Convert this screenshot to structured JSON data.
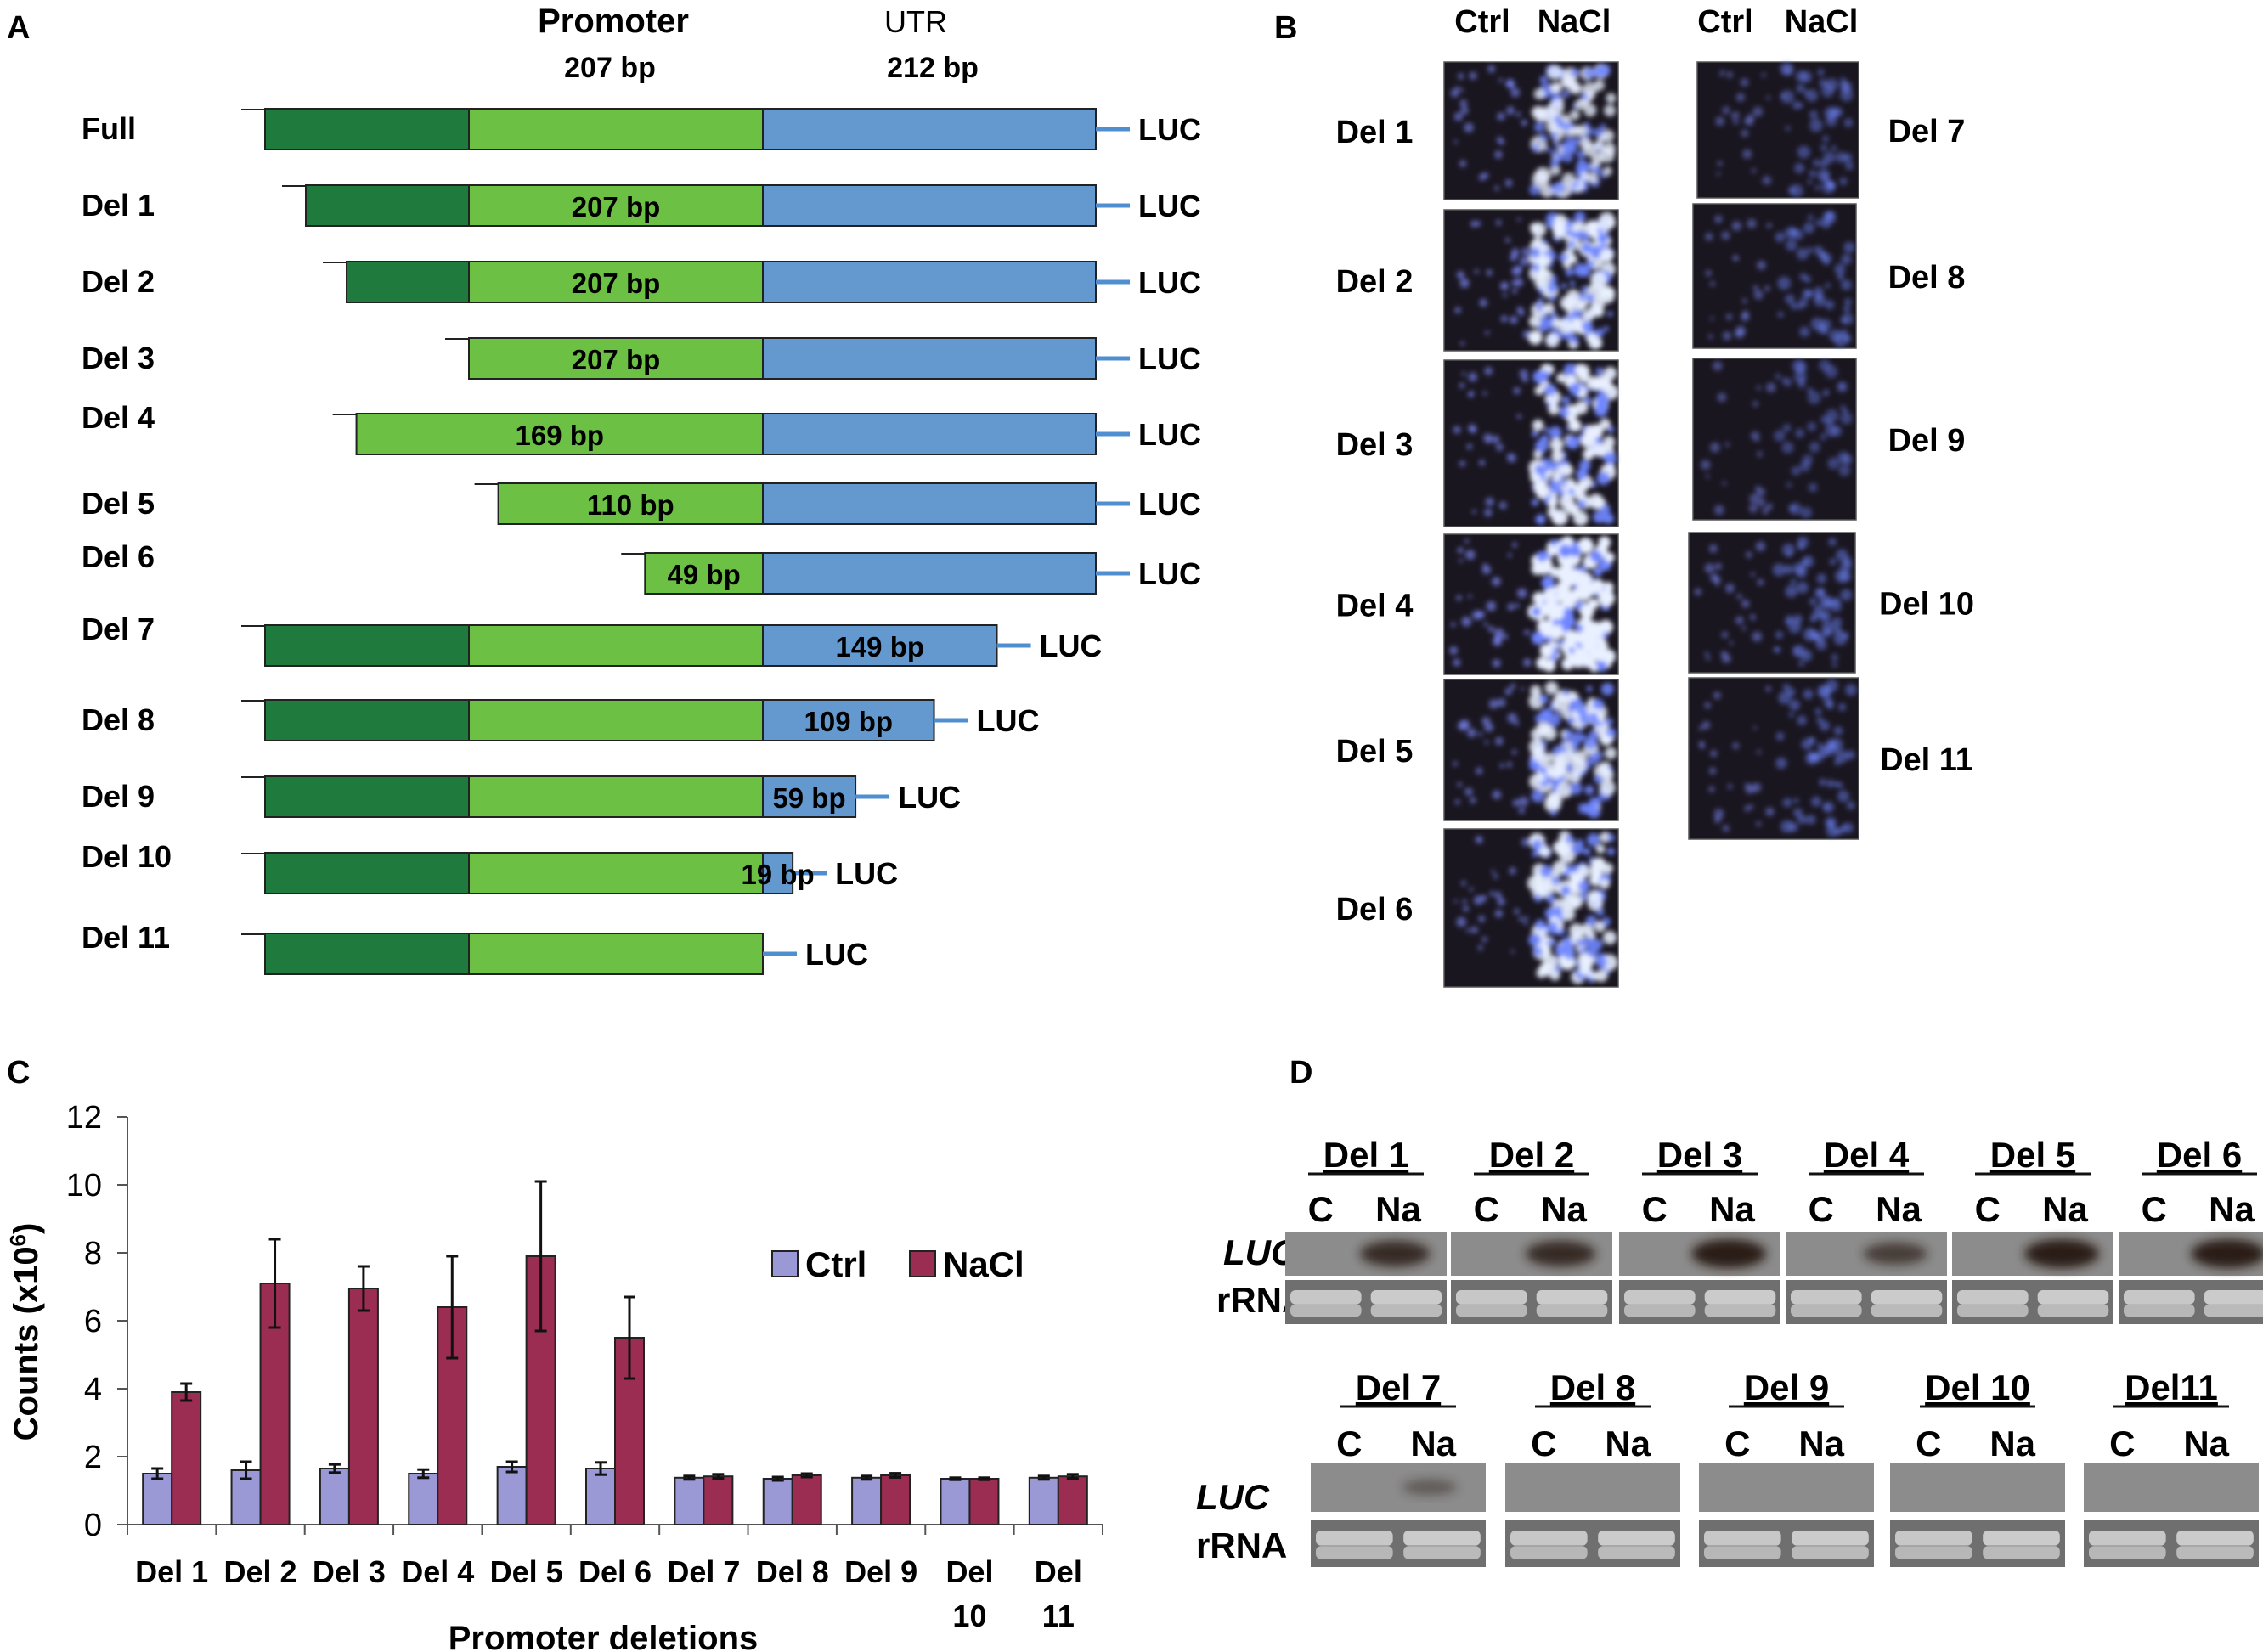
{
  "panel_labels": {
    "a": "A",
    "b": "B",
    "c": "C",
    "d": "D"
  },
  "colors": {
    "dark_green": "#1f7a3e",
    "light_green": "#6cc043",
    "blue": "#6399cf",
    "luc_line": "#4f8fd0",
    "ctrl_bar": "#9b98d6",
    "nacl_bar": "#9b2d52",
    "blot_bg": "#8c8c8c",
    "luc_band": "#2a1a14"
  },
  "panel_a": {
    "header": {
      "promoter_title": "Promoter",
      "promoter_size": "207 bp",
      "utr_title": "UTR",
      "utr_size": "212 bp"
    },
    "luc_label": "LUC",
    "constructs": [
      {
        "name": "Full",
        "dark_start": 0,
        "light_start": 0,
        "utr_bp": 212,
        "label": ""
      },
      {
        "name": "Del 1",
        "dark_start": 0.2,
        "light_start": 0,
        "utr_bp": 212,
        "label": "207 bp"
      },
      {
        "name": "Del 2",
        "dark_start": 0.4,
        "light_start": 0,
        "utr_bp": 212,
        "label": "207 bp"
      },
      {
        "name": "Del 3",
        "dark_start": null,
        "light_start": 0,
        "utr_bp": 212,
        "label": "207 bp"
      },
      {
        "name": "Del 4",
        "dark_start": null,
        "light_start": 38,
        "utr_bp": 212,
        "label": "169 bp"
      },
      {
        "name": "Del 5",
        "dark_start": null,
        "light_start": 97,
        "utr_bp": 212,
        "label": "110 bp"
      },
      {
        "name": "Del 6",
        "dark_start": null,
        "light_start": 158,
        "utr_bp": 212,
        "label": "49 bp"
      },
      {
        "name": "Del 7",
        "dark_start": 0,
        "light_start": 0,
        "utr_bp": 149,
        "label": "149 bp"
      },
      {
        "name": "Del 8",
        "dark_start": 0,
        "light_start": 0,
        "utr_bp": 109,
        "label": "109 bp"
      },
      {
        "name": "Del 9",
        "dark_start": 0,
        "light_start": 0,
        "utr_bp": 59,
        "label": "59 bp"
      },
      {
        "name": "Del 10",
        "dark_start": 0,
        "light_start": 0,
        "utr_bp": 19,
        "label": "19 bp"
      },
      {
        "name": "Del 11",
        "dark_start": 0,
        "light_start": 0,
        "utr_bp": 0,
        "label": ""
      }
    ]
  },
  "panel_b": {
    "col_ctrl": "Ctrl",
    "col_nacl": "NaCl",
    "left_rows": [
      {
        "name": "Del 1",
        "ctrl": 0.25,
        "nacl": 0.7
      },
      {
        "name": "Del 2",
        "ctrl": 0.3,
        "nacl": 0.85
      },
      {
        "name": "Del 3",
        "ctrl": 0.25,
        "nacl": 0.9
      },
      {
        "name": "Del 4",
        "ctrl": 0.3,
        "nacl": 1.0
      },
      {
        "name": "Del 5",
        "ctrl": 0.25,
        "nacl": 0.8
      },
      {
        "name": "Del 6",
        "ctrl": 0.25,
        "nacl": 0.85
      }
    ],
    "right_rows": [
      {
        "name": "Del 7",
        "ctrl": 0.1,
        "nacl": 0.2
      },
      {
        "name": "Del 8",
        "ctrl": 0.12,
        "nacl": 0.22
      },
      {
        "name": "Del 9",
        "ctrl": 0.1,
        "nacl": 0.15
      },
      {
        "name": "Del 10",
        "ctrl": 0.15,
        "nacl": 0.25
      },
      {
        "name": "Del 11",
        "ctrl": 0.15,
        "nacl": 0.25
      }
    ]
  },
  "chart_data": {
    "type": "bar",
    "title": "",
    "xlabel": "Promoter deletions",
    "ylabel": "Counts (x10",
    "ylabel_sup": "6",
    "ylabel_close": ")",
    "ylim": [
      0,
      12
    ],
    "yticks": [
      "0",
      "2",
      "4",
      "6",
      "8",
      "10",
      "12"
    ],
    "legend_position": "right",
    "categories": [
      [
        "Del 1"
      ],
      [
        "Del 2"
      ],
      [
        "Del 3"
      ],
      [
        "Del 4"
      ],
      [
        "Del 5"
      ],
      [
        "Del 6"
      ],
      [
        "Del 7"
      ],
      [
        "Del 8"
      ],
      [
        "Del 9"
      ],
      [
        "Del",
        "10"
      ],
      [
        "Del",
        "11"
      ]
    ],
    "series": [
      {
        "name": "Ctrl",
        "values": [
          1.5,
          1.6,
          1.65,
          1.5,
          1.7,
          1.65,
          1.38,
          1.35,
          1.38,
          1.35,
          1.38
        ],
        "errors": [
          0.15,
          0.25,
          0.12,
          0.12,
          0.15,
          0.18,
          0.05,
          0.05,
          0.05,
          0.03,
          0.05
        ]
      },
      {
        "name": "NaCl",
        "values": [
          3.9,
          7.1,
          6.95,
          6.4,
          7.9,
          5.5,
          1.42,
          1.45,
          1.45,
          1.35,
          1.42
        ],
        "errors": [
          0.25,
          1.3,
          0.65,
          1.5,
          2.2,
          1.2,
          0.06,
          0.05,
          0.06,
          0.03,
          0.06
        ]
      }
    ]
  },
  "panel_d": {
    "luc_label": "LUC",
    "rrna_label": "rRNA",
    "c_label": "C",
    "na_label": "Na",
    "top_row": [
      {
        "name": "Del 1",
        "band": 0.8
      },
      {
        "name": "Del 2",
        "band": 0.8
      },
      {
        "name": "Del 3",
        "band": 1.0
      },
      {
        "name": "Del 4",
        "band": 0.55
      },
      {
        "name": "Del 5",
        "band": 1.0
      },
      {
        "name": "Del 6",
        "band": 1.0
      }
    ],
    "bottom_row": [
      {
        "name": "Del 7",
        "band": 0.15
      },
      {
        "name": "Del 8",
        "band": 0.0
      },
      {
        "name": "Del 9",
        "band": 0.0
      },
      {
        "name": "Del 10",
        "band": 0.0
      },
      {
        "name": "Del11",
        "band": 0.0
      }
    ]
  }
}
